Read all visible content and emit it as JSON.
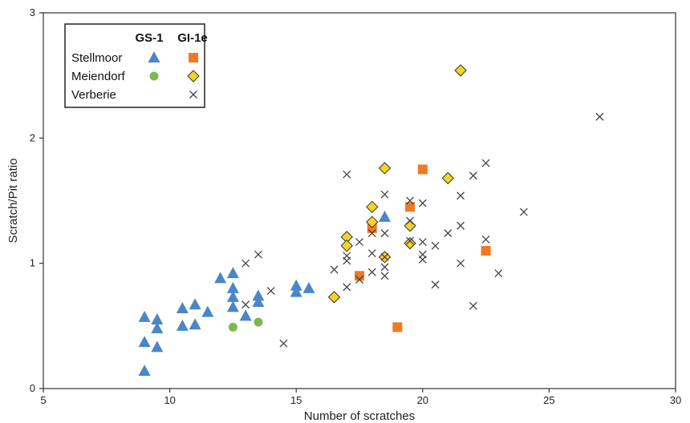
{
  "chart_data": {
    "type": "scatter",
    "title": "",
    "xlabel": "Number of scratches",
    "ylabel": "Scratch/Pit ratio",
    "xlim": [
      5,
      30
    ],
    "ylim": [
      0,
      3
    ],
    "xticks": [
      5,
      10,
      15,
      20,
      25,
      30
    ],
    "yticks": [
      0,
      1,
      2,
      3
    ],
    "grid": false,
    "legend": {
      "placement": "top-left",
      "column_headers": [
        "GS-1",
        "GI-1e"
      ],
      "rows": [
        "Stellmoor",
        "Meiendorf",
        "Verberie"
      ]
    },
    "colors": {
      "stellmoor_gs1": "#4a86c8",
      "meiendorf_gs1": "#7cb84f",
      "stellmoor_gi1e": "#f07a22",
      "meiendorf_gi1e": "#f5d327",
      "verberie": "#444444"
    },
    "series": [
      {
        "site": "Stellmoor",
        "period": "GS-1",
        "marker": "triangle",
        "color": "#4a86c8",
        "points": [
          [
            9,
            0.57
          ],
          [
            9,
            0.37
          ],
          [
            9,
            0.14
          ],
          [
            9.5,
            0.55
          ],
          [
            9.5,
            0.48
          ],
          [
            9.5,
            0.33
          ],
          [
            10.5,
            0.64
          ],
          [
            10.5,
            0.5
          ],
          [
            11,
            0.67
          ],
          [
            11,
            0.51
          ],
          [
            11.5,
            0.61
          ],
          [
            12,
            0.88
          ],
          [
            12.5,
            0.92
          ],
          [
            12.5,
            0.8
          ],
          [
            12.5,
            0.73
          ],
          [
            12.5,
            0.65
          ],
          [
            13,
            0.58
          ],
          [
            13.5,
            0.74
          ],
          [
            13.5,
            0.69
          ],
          [
            15,
            0.82
          ],
          [
            15,
            0.77
          ],
          [
            15.5,
            0.8
          ],
          [
            18.5,
            1.37
          ]
        ]
      },
      {
        "site": "Meiendorf",
        "period": "GS-1",
        "marker": "circle",
        "color": "#7cb84f",
        "points": [
          [
            12.5,
            0.49
          ],
          [
            13.5,
            0.53
          ]
        ]
      },
      {
        "site": "Stellmoor",
        "period": "GI-1e",
        "marker": "square",
        "color": "#f07a22",
        "points": [
          [
            17.5,
            0.9
          ],
          [
            18,
            1.28
          ],
          [
            19,
            0.49
          ],
          [
            19.5,
            1.45
          ],
          [
            20,
            1.75
          ],
          [
            22.5,
            1.1
          ]
        ]
      },
      {
        "site": "Meiendorf",
        "period": "GI-1e",
        "marker": "diamond",
        "color": "#f5d327",
        "points": [
          [
            16.5,
            0.73
          ],
          [
            17,
            1.21
          ],
          [
            17,
            1.14
          ],
          [
            18,
            1.45
          ],
          [
            18,
            1.33
          ],
          [
            18.5,
            1.76
          ],
          [
            18.5,
            1.05
          ],
          [
            19.5,
            1.3
          ],
          [
            19.5,
            1.16
          ],
          [
            21,
            1.68
          ],
          [
            21.5,
            2.54
          ]
        ]
      },
      {
        "site": "Verberie",
        "period": "",
        "marker": "x",
        "color": "#444444",
        "points": [
          [
            13,
            1.0
          ],
          [
            13,
            0.67
          ],
          [
            13.5,
            1.07
          ],
          [
            14,
            0.78
          ],
          [
            14.5,
            0.36
          ],
          [
            16.5,
            0.95
          ],
          [
            17,
            1.71
          ],
          [
            17,
            1.06
          ],
          [
            17,
            1.02
          ],
          [
            17,
            0.81
          ],
          [
            17.5,
            1.17
          ],
          [
            17.5,
            0.87
          ],
          [
            18,
            1.24
          ],
          [
            18,
            1.08
          ],
          [
            18,
            0.93
          ],
          [
            18.5,
            1.55
          ],
          [
            18.5,
            1.24
          ],
          [
            18.5,
            1.05
          ],
          [
            18.5,
            0.97
          ],
          [
            18.5,
            0.9
          ],
          [
            19.5,
            1.5
          ],
          [
            19.5,
            1.34
          ],
          [
            19.5,
            1.18
          ],
          [
            20,
            1.48
          ],
          [
            20,
            1.17
          ],
          [
            20,
            1.07
          ],
          [
            20,
            1.03
          ],
          [
            20.5,
            1.14
          ],
          [
            20.5,
            0.83
          ],
          [
            21,
            1.24
          ],
          [
            21.5,
            1.54
          ],
          [
            21.5,
            1.3
          ],
          [
            21.5,
            1.0
          ],
          [
            22,
            1.7
          ],
          [
            22,
            0.66
          ],
          [
            22.5,
            1.8
          ],
          [
            22.5,
            1.19
          ],
          [
            23,
            0.92
          ],
          [
            24,
            1.41
          ],
          [
            27,
            2.17
          ]
        ]
      }
    ]
  }
}
